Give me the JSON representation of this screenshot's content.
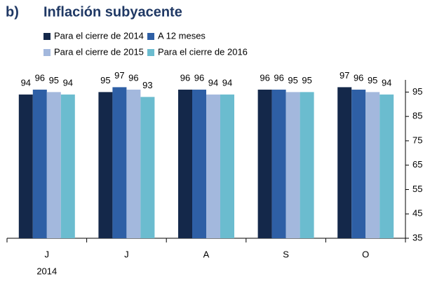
{
  "chart_data": {
    "type": "bar",
    "panel_label": "b)",
    "title": "Inflación subyacente",
    "categories": [
      "J",
      "J",
      "A",
      "S",
      "O"
    ],
    "year_label": "2014",
    "series": [
      {
        "name": "Para el cierre de 2014",
        "color": "#14284a",
        "values": [
          94,
          95,
          96,
          96,
          97
        ]
      },
      {
        "name": "A 12 meses",
        "color": "#2e5fa5",
        "values": [
          96,
          97,
          96,
          96,
          96
        ]
      },
      {
        "name": "Para el cierre de 2015",
        "color": "#a3b8dd",
        "values": [
          95,
          96,
          94,
          95,
          95
        ]
      },
      {
        "name": "Para el cierre de 2016",
        "color": "#6bbccf",
        "values": [
          94,
          93,
          94,
          95,
          94
        ]
      }
    ],
    "ylim": [
      35,
      100
    ],
    "yticks": [
      35,
      45,
      55,
      65,
      75,
      85,
      95
    ],
    "y_axis_side": "right",
    "grid": false
  }
}
